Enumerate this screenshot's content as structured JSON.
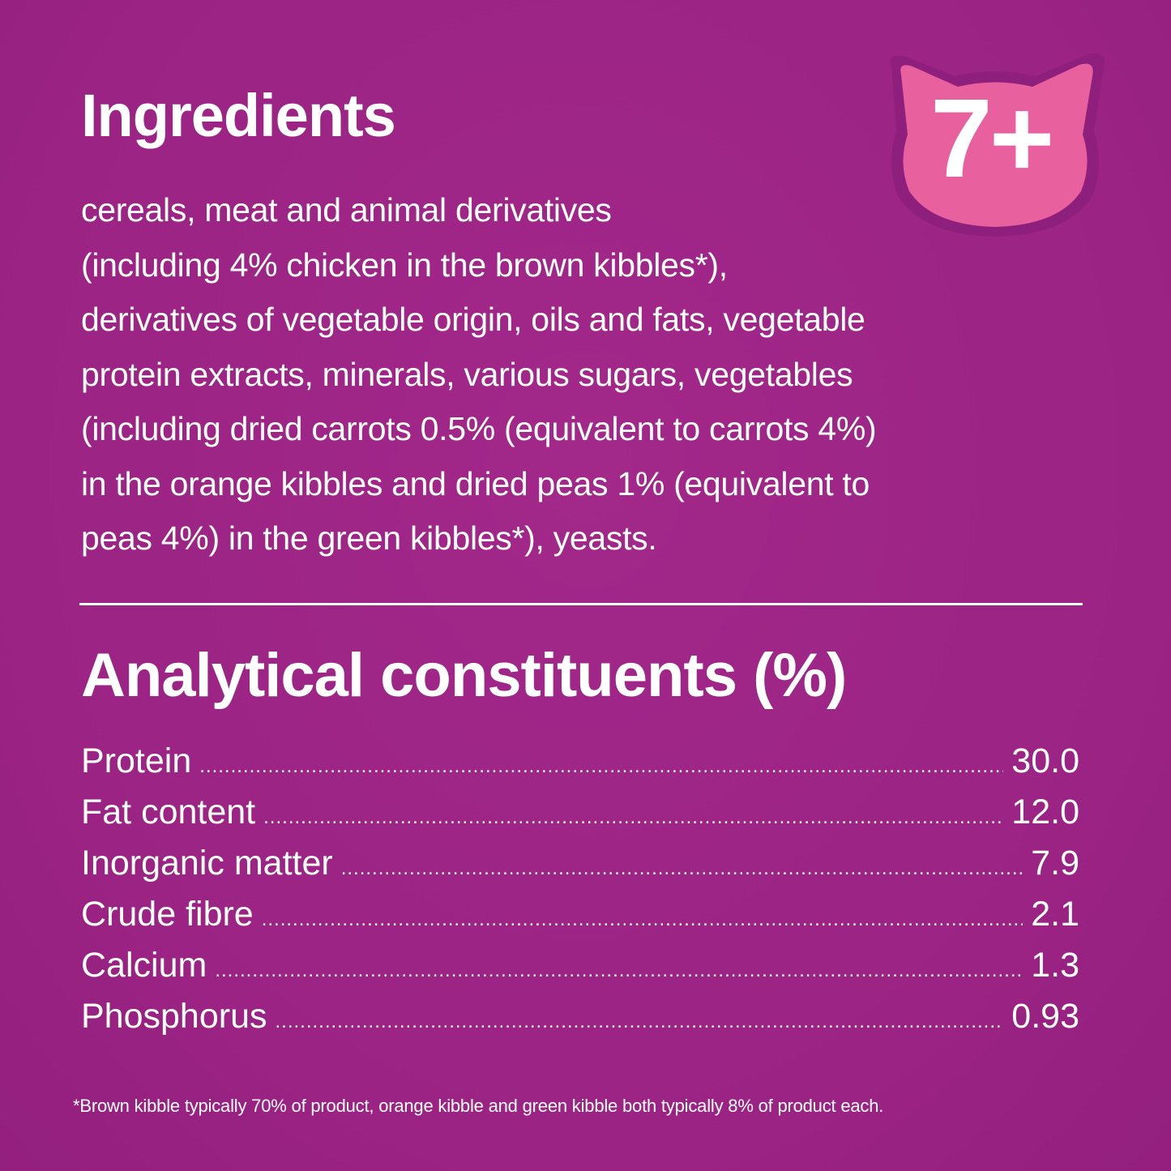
{
  "ingredients": {
    "title": "Ingredients",
    "lines": [
      "cereals, meat and animal derivatives",
      "(including 4% chicken in the brown kibbles*),",
      "derivatives of vegetable origin, oils and fats, vegetable",
      "protein extracts, minerals, various sugars, vegetables",
      "(including dried carrots 0.5% (equivalent to carrots 4%)",
      "in the orange kibbles and dried peas 1% (equivalent to",
      "peas 4%) in the green kibbles*), yeasts."
    ]
  },
  "badge": {
    "text": "7+",
    "icon": "cat-head-icon",
    "color": "#e8609e",
    "outline": "#8e1f7c"
  },
  "analytical": {
    "title": "Analytical constituents (%)",
    "rows": [
      {
        "label": "Protein",
        "value": "30.0"
      },
      {
        "label": "Fat content",
        "value": "12.0"
      },
      {
        "label": "Inorganic matter",
        "value": "7.9"
      },
      {
        "label": "Crude fibre",
        "value": "2.1"
      },
      {
        "label": "Calcium",
        "value": "1.3"
      },
      {
        "label": "Phosphorus",
        "value": "0.93"
      }
    ]
  },
  "footnote": "*Brown kibble typically 70% of product, orange kibble and green kibble both typically 8% of product each.",
  "colors": {
    "background": "#9d2484",
    "text": "#ffffff"
  }
}
